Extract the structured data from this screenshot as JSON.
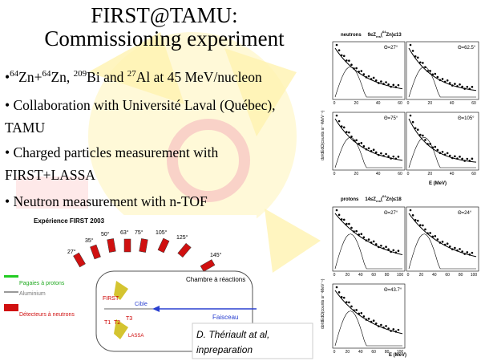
{
  "title": {
    "line1": "FIRST@TAMU:",
    "line2": "Commissioning experiment"
  },
  "bullets": [
    [
      "•",
      "64",
      "Zn+",
      "64",
      "Zn, ",
      "209",
      "Bi and ",
      "27",
      "Al at 45 MeV/nucleon"
    ],
    [
      "• Collaboration with Université Laval (Québec),",
      "TAMU"
    ],
    [
      "• Charged particles measurement with",
      "FIRST+LASSA"
    ],
    [
      "• Neutron measurement with n-TOF"
    ]
  ],
  "setup": {
    "title": "Expérience FIRST 2003",
    "angles": [
      "27°",
      "35°",
      "50°",
      "63°",
      "75°",
      "105°",
      "125°",
      "145°"
    ],
    "legend": [
      "Pagaies à protons",
      "Aluminium",
      "Détecteurs à neutrons"
    ],
    "chamber": "Chambre à réactions",
    "target": "Cible",
    "beam": "Faisceau",
    "detectors": [
      "FIRST",
      "T1",
      "T2",
      "T3",
      "LASSA"
    ],
    "citation": [
      "D. Thériault at al,",
      "inpreparation"
    ]
  },
  "spectra": {
    "y_label": "dσ/dEdΩ(counts sr⁻¹MeV⁻¹)",
    "x_label": "E (MeV)",
    "neutrons": {
      "header": [
        "neutrons",
        "9≤Z",
        "res",
        "(",
        "64",
        "Zn)≤13"
      ],
      "panels": [
        "Θ=27°",
        "Θ=62.5°",
        "Θ=75°",
        "Θ=105°"
      ],
      "xticks": [
        "0",
        "20",
        "40",
        "60"
      ]
    },
    "protons": {
      "header": [
        "protons",
        "14≤Z",
        "res",
        "(",
        "64",
        "Zn)≤18"
      ],
      "panels": [
        "Θ=27°",
        "Θ=24°",
        "Θ=43.7°"
      ],
      "xticks": [
        "0",
        "20",
        "40",
        "60",
        "80",
        "100"
      ]
    }
  }
}
